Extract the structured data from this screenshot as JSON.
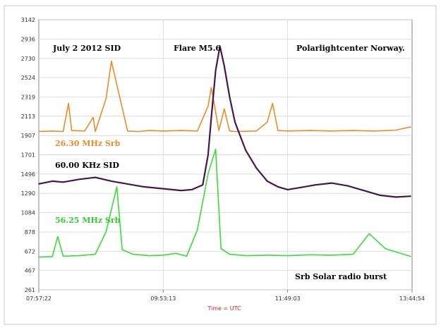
{
  "chart_data": {
    "type": "line",
    "title": "",
    "xlabel": "Time = UTC",
    "ylabel": "",
    "x_tick_labels": [
      "07:57:22",
      "09:53:13",
      "11:49:03",
      "13:44:54"
    ],
    "y_ticks": [
      261,
      467,
      672,
      878,
      1084,
      1290,
      1496,
      1701,
      1907,
      2113,
      2319,
      2524,
      2730,
      2936,
      3142
    ],
    "ylim": [
      261,
      3142
    ],
    "xlim": [
      "07:57:22",
      "13:44:54"
    ],
    "grid": true,
    "annotations": {
      "date": "July 2 2012   SID",
      "flare": "Flare M5.6",
      "station": "Polarlightcenter Norway.",
      "legend_footer": "Srb Solar radio burst"
    },
    "series": [
      {
        "name": "26.30 MHz  Srb",
        "color": "#f08a24",
        "x": [
          "07:57",
          "08:10",
          "08:20",
          "08:25",
          "08:28",
          "08:40",
          "08:48",
          "08:50",
          "09:00",
          "09:05",
          "09:20",
          "09:30",
          "09:40",
          "09:53",
          "10:10",
          "10:25",
          "10:35",
          "10:38",
          "10:45",
          "10:50",
          "10:55",
          "11:00",
          "11:20",
          "11:30",
          "11:35",
          "11:40",
          "11:49",
          "12:10",
          "12:30",
          "12:50",
          "13:10",
          "13:30",
          "13:44"
        ],
        "values": [
          1950,
          1955,
          1950,
          2250,
          1960,
          1955,
          2100,
          1950,
          2300,
          2700,
          1955,
          1950,
          1960,
          1955,
          1960,
          1955,
          2220,
          2420,
          1960,
          2190,
          1955,
          1950,
          1955,
          2050,
          2250,
          1960,
          1955,
          1960,
          1955,
          1960,
          1955,
          1965,
          2000
        ]
      },
      {
        "name": "60.00 KHz SID",
        "color": "#4a1450",
        "x": [
          "07:57",
          "08:10",
          "08:20",
          "08:35",
          "08:50",
          "09:05",
          "09:20",
          "09:35",
          "09:53",
          "10:10",
          "10:20",
          "10:30",
          "10:35",
          "10:38",
          "10:42",
          "10:46",
          "10:50",
          "10:55",
          "11:00",
          "11:10",
          "11:20",
          "11:30",
          "11:40",
          "11:49",
          "12:00",
          "12:15",
          "12:30",
          "12:45",
          "13:00",
          "13:15",
          "13:30",
          "13:44"
        ],
        "values": [
          1390,
          1420,
          1410,
          1440,
          1460,
          1420,
          1390,
          1360,
          1340,
          1320,
          1330,
          1380,
          1700,
          2100,
          2600,
          2860,
          2650,
          2320,
          2050,
          1750,
          1560,
          1420,
          1360,
          1330,
          1350,
          1380,
          1400,
          1370,
          1320,
          1270,
          1250,
          1260
        ]
      },
      {
        "name": "56.25 MHz Srb",
        "color": "#33e033",
        "x": [
          "07:57",
          "08:10",
          "08:15",
          "08:20",
          "08:35",
          "08:50",
          "09:00",
          "09:10",
          "09:15",
          "09:25",
          "09:40",
          "09:53",
          "10:05",
          "10:15",
          "10:25",
          "10:35",
          "10:42",
          "10:47",
          "10:55",
          "11:10",
          "11:30",
          "11:49",
          "12:10",
          "12:30",
          "12:50",
          "13:05",
          "13:20",
          "13:44"
        ],
        "values": [
          610,
          615,
          830,
          620,
          625,
          640,
          880,
          1360,
          690,
          640,
          625,
          630,
          650,
          620,
          900,
          1500,
          1760,
          700,
          640,
          625,
          630,
          625,
          635,
          630,
          640,
          860,
          700,
          615
        ]
      }
    ]
  }
}
